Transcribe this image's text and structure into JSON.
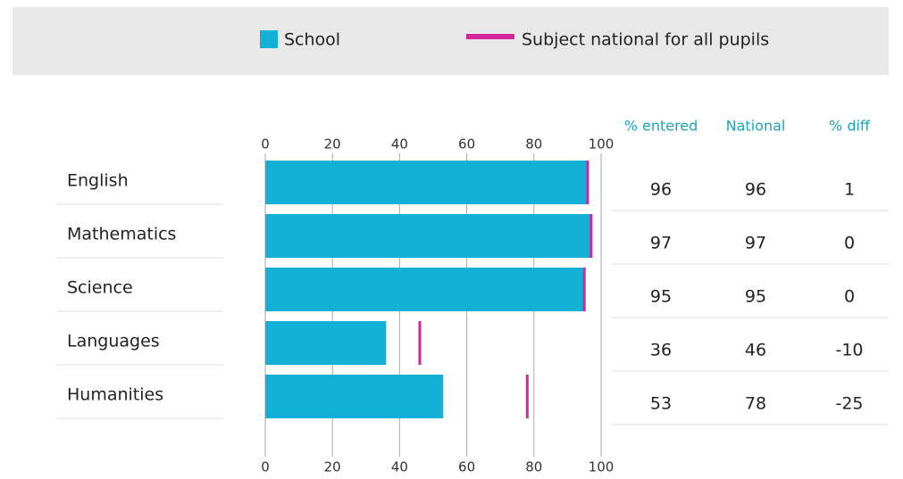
{
  "chart_data": {
    "type": "bar",
    "orientation": "horizontal",
    "categories": [
      "English",
      "Mathematics",
      "Science",
      "Languages",
      "Humanities"
    ],
    "series": [
      {
        "name": "School",
        "color": "#12b0d4",
        "values": [
          96,
          97,
          95,
          36,
          53
        ]
      },
      {
        "name": "Subject national for all pupils",
        "color": "#d6249c",
        "values": [
          96,
          97,
          95,
          46,
          78
        ],
        "marker": "line"
      }
    ],
    "table_headers": [
      "% entered",
      "National",
      "% diff"
    ],
    "diff": [
      1,
      0,
      0,
      -10,
      -25
    ],
    "xlim": [
      0,
      100
    ],
    "xticks": [
      0,
      20,
      40,
      60,
      80,
      100
    ],
    "grid": true
  }
}
